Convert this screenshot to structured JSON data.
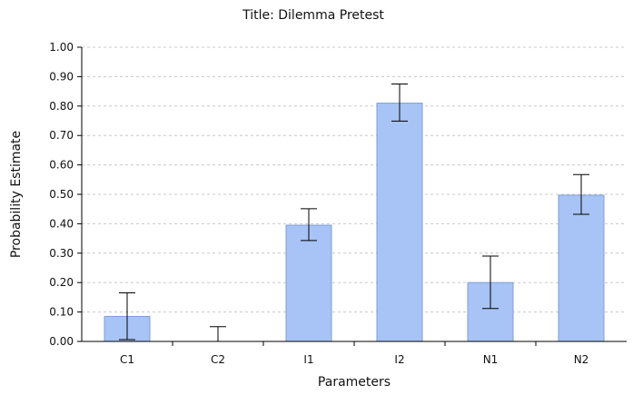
{
  "chart_data": {
    "type": "bar",
    "title": "Title: Dilemma Pretest",
    "xlabel": "Parameters",
    "ylabel": "Probability Estimate",
    "ylim": [
      0,
      1
    ],
    "y_ticks": [
      "0.00",
      "0.10",
      "0.20",
      "0.30",
      "0.40",
      "0.50",
      "0.60",
      "0.70",
      "0.80",
      "0.90",
      "1.00"
    ],
    "grid": true,
    "categories": [
      "C1",
      "C2",
      "I1",
      "I2",
      "N1",
      "N2"
    ],
    "values": [
      0.085,
      0.0,
      0.395,
      0.81,
      0.2,
      0.497
    ],
    "error_low": [
      0.006,
      0.0,
      0.343,
      0.749,
      0.112,
      0.432
    ],
    "error_high": [
      0.165,
      0.05,
      0.451,
      0.875,
      0.29,
      0.567
    ],
    "colors": {
      "bar_fill": "#a8c3f5",
      "bar_stroke": "#7f9fd6",
      "grid": "#c8c8c8",
      "axis": "#000000"
    }
  }
}
